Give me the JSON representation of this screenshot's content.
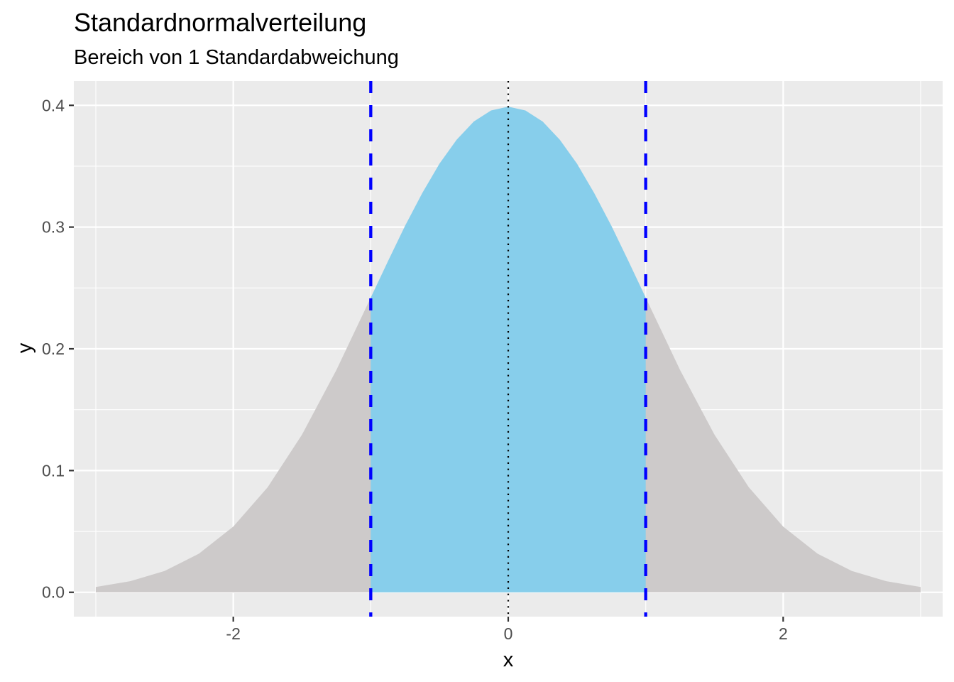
{
  "chart_data": {
    "type": "area",
    "title": "Standardnormalverteilung",
    "subtitle": "Bereich von 1 Standardabweichung",
    "xlabel": "x",
    "ylabel": "y",
    "xlim": [
      -3.16,
      3.16
    ],
    "ylim": [
      -0.02,
      0.42
    ],
    "x_ticks": [
      -2,
      0,
      2
    ],
    "x_tick_labels": [
      "-2",
      "0",
      "2"
    ],
    "y_ticks": [
      0.0,
      0.1,
      0.2,
      0.3,
      0.4
    ],
    "y_tick_labels": [
      "0.0",
      "0.1",
      "0.2",
      "0.3",
      "0.4"
    ],
    "x_minor_breaks": [
      -3,
      -1,
      1,
      3
    ],
    "y_minor_breaks": [
      0.05,
      0.15,
      0.25,
      0.35
    ],
    "grid": true,
    "panel_background": "#EBEBEB",
    "grid_color": "#FFFFFF",
    "series": [
      {
        "fill": "#CDCACA",
        "x": [
          -3.0,
          -2.75,
          -2.5,
          -2.25,
          -2.0,
          -1.75,
          -1.5,
          -1.25,
          -1.0,
          -0.75,
          -0.5,
          -0.25,
          0.0,
          0.25,
          0.5,
          0.75,
          1.0,
          1.25,
          1.5,
          1.75,
          2.0,
          2.25,
          2.5,
          2.75,
          3.0
        ],
        "y": [
          0.0044,
          0.0091,
          0.0175,
          0.0317,
          0.054,
          0.0863,
          0.1295,
          0.1826,
          0.242,
          0.3011,
          0.3521,
          0.3867,
          0.3989,
          0.3867,
          0.3521,
          0.3011,
          0.242,
          0.1826,
          0.1295,
          0.0863,
          0.054,
          0.0317,
          0.0175,
          0.0091,
          0.0044
        ]
      },
      {
        "fill": "#87CEEB",
        "x": [
          -1.0,
          -0.875,
          -0.75,
          -0.625,
          -0.5,
          -0.375,
          -0.25,
          -0.125,
          0.0,
          0.125,
          0.25,
          0.375,
          0.5,
          0.625,
          0.75,
          0.875,
          1.0
        ],
        "y": [
          0.242,
          0.2719,
          0.3011,
          0.328,
          0.3521,
          0.3718,
          0.3867,
          0.3958,
          0.3989,
          0.3958,
          0.3867,
          0.3718,
          0.3521,
          0.328,
          0.3011,
          0.2719,
          0.242
        ]
      }
    ],
    "vlines": [
      {
        "x": -1,
        "style": "dashed",
        "color": "#0000FF"
      },
      {
        "x": 1,
        "style": "dashed",
        "color": "#0000FF"
      },
      {
        "x": 0,
        "style": "dotted",
        "color": "#000000"
      }
    ]
  }
}
